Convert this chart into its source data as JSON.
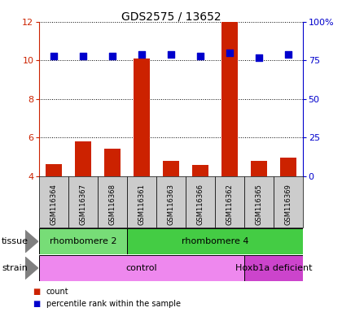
{
  "title": "GDS2575 / 13652",
  "samples": [
    "GSM116364",
    "GSM116367",
    "GSM116368",
    "GSM116361",
    "GSM116363",
    "GSM116366",
    "GSM116362",
    "GSM116365",
    "GSM116369"
  ],
  "counts": [
    4.65,
    5.8,
    5.45,
    10.1,
    4.8,
    4.6,
    12.0,
    4.8,
    4.95
  ],
  "percentile_ranks": [
    78,
    78,
    78,
    79,
    79,
    78,
    80,
    77,
    79
  ],
  "ylim": [
    4,
    12
  ],
  "yticks_left": [
    4,
    6,
    8,
    10,
    12
  ],
  "yticks_right": [
    0,
    25,
    50,
    75,
    100
  ],
  "right_ylim": [
    0,
    100
  ],
  "bar_color": "#cc2200",
  "dot_color": "#0000cc",
  "bg_sample": "#cccccc",
  "tissue_groups": [
    {
      "label": "rhombomere 2",
      "start": 0,
      "end": 3,
      "color": "#77dd77"
    },
    {
      "label": "rhombomere 4",
      "start": 3,
      "end": 9,
      "color": "#44cc44"
    }
  ],
  "strain_groups": [
    {
      "label": "control",
      "start": 0,
      "end": 7,
      "color": "#ee88ee"
    },
    {
      "label": "Hoxb1a deficient",
      "start": 7,
      "end": 9,
      "color": "#cc44cc"
    }
  ],
  "left_label_color": "#cc2200",
  "right_label_color": "#0000cc",
  "title_color": "#000000",
  "bar_width": 0.55,
  "dot_size": 35,
  "legend_items": [
    {
      "label": "count",
      "color": "#cc2200"
    },
    {
      "label": "percentile rank within the sample",
      "color": "#0000cc"
    }
  ]
}
